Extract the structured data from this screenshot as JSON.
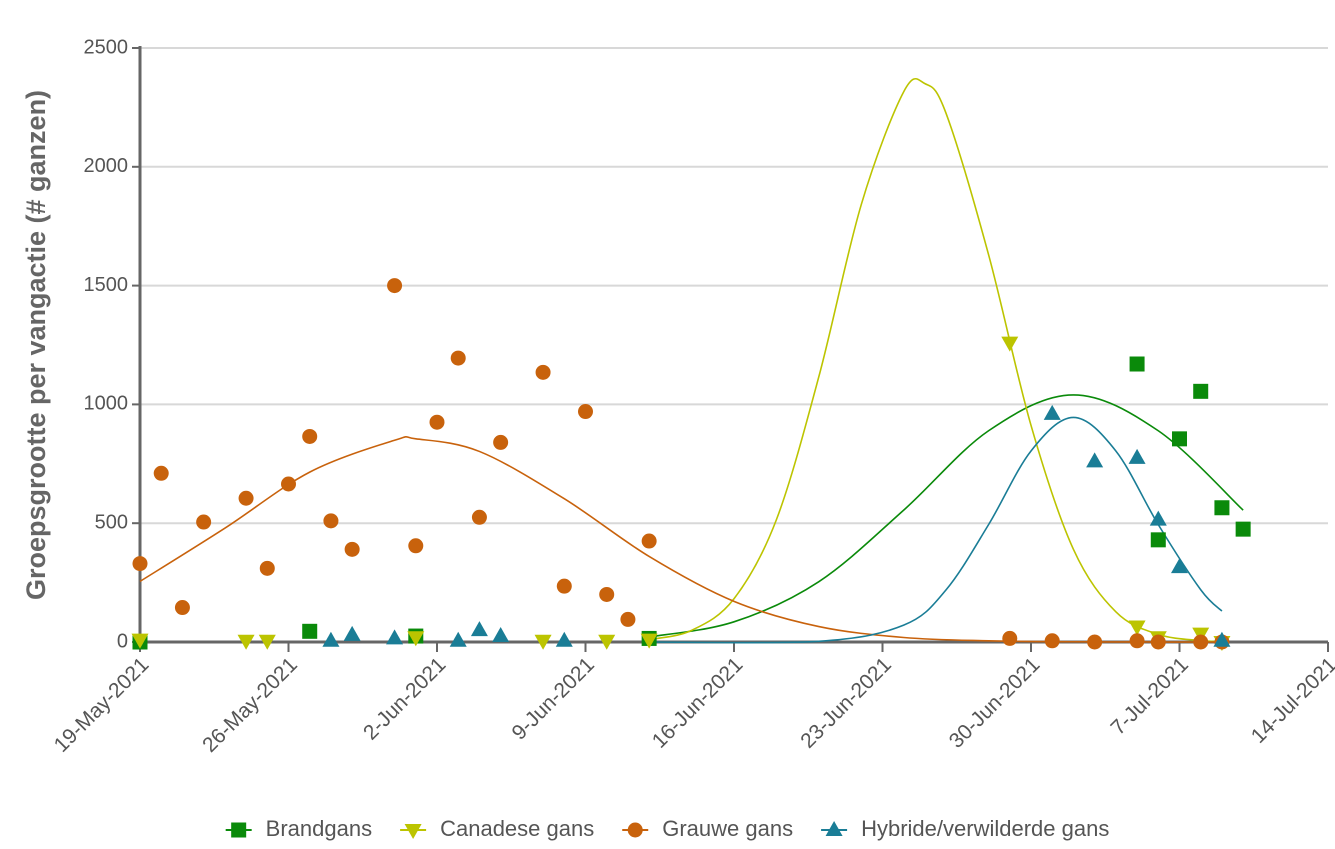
{
  "chart_data": {
    "type": "scatter",
    "y_label": "Groepsgrootte per vangactie (# ganzen)",
    "xlim": [
      "2021-05-19",
      "2021-07-14"
    ],
    "xticks": [
      {
        "value": "2021-05-19",
        "label": "19-May-2021"
      },
      {
        "value": "2021-05-26",
        "label": "26-May-2021"
      },
      {
        "value": "2021-06-02",
        "label": "2-Jun-2021"
      },
      {
        "value": "2021-06-09",
        "label": "9-Jun-2021"
      },
      {
        "value": "2021-06-16",
        "label": "16-Jun-2021"
      },
      {
        "value": "2021-06-23",
        "label": "23-Jun-2021"
      },
      {
        "value": "2021-06-30",
        "label": "30-Jun-2021"
      },
      {
        "value": "2021-07-07",
        "label": "7-Jul-2021"
      },
      {
        "value": "2021-07-14",
        "label": "14-Jul-2021"
      }
    ],
    "ylim": [
      0,
      2500
    ],
    "yticks": [
      0,
      500,
      1000,
      1500,
      2000,
      2500
    ],
    "grid": true,
    "legend": "bottom",
    "series": [
      {
        "name": "Brandgans",
        "color": "#0a8a0a",
        "marker": "square",
        "x": [
          "2021-05-19",
          "2021-05-27",
          "2021-06-01",
          "2021-06-12",
          "2021-07-05",
          "2021-07-06",
          "2021-07-07",
          "2021-07-08",
          "2021-07-09",
          "2021-07-10"
        ],
        "values": [
          0,
          45,
          25,
          15,
          1170,
          430,
          855,
          1055,
          565,
          475
        ],
        "trend": {
          "x": [
            "2021-06-12",
            "2021-06-16",
            "2021-06-20",
            "2021-06-24",
            "2021-06-28",
            "2021-07-02",
            "2021-07-06",
            "2021-07-10"
          ],
          "values": [
            21,
            85,
            254,
            555,
            889,
            1040,
            889,
            555
          ]
        }
      },
      {
        "name": "Canadese gans",
        "color": "#bcc400",
        "marker": "triangle-down",
        "x": [
          "2021-05-19",
          "2021-05-24",
          "2021-05-25",
          "2021-06-01",
          "2021-06-07",
          "2021-06-10",
          "2021-06-12",
          "2021-06-29",
          "2021-07-05",
          "2021-07-06",
          "2021-07-08",
          "2021-07-09"
        ],
        "values": [
          10,
          5,
          5,
          20,
          5,
          5,
          10,
          1260,
          65,
          20,
          35,
          0
        ],
        "trend": {
          "x": [
            "2021-06-12",
            "2021-06-14",
            "2021-06-16",
            "2021-06-18",
            "2021-06-20",
            "2021-06-22",
            "2021-06-24",
            "2021-06-25",
            "2021-06-26",
            "2021-06-28",
            "2021-06-30",
            "2021-07-02",
            "2021-07-04",
            "2021-07-06",
            "2021-07-08",
            "2021-07-09"
          ],
          "values": [
            10,
            49,
            182,
            515,
            1117,
            1841,
            2316,
            2350,
            2224,
            1630,
            912,
            390,
            127,
            32,
            6,
            2
          ]
        }
      },
      {
        "name": "Grauwe gans",
        "color": "#c8620c",
        "marker": "circle",
        "x": [
          "2021-05-19",
          "2021-05-20",
          "2021-05-21",
          "2021-05-22",
          "2021-05-24",
          "2021-05-25",
          "2021-05-26",
          "2021-05-27",
          "2021-05-28",
          "2021-05-29",
          "2021-05-31",
          "2021-06-01",
          "2021-06-02",
          "2021-06-03",
          "2021-06-04",
          "2021-06-05",
          "2021-06-07",
          "2021-06-08",
          "2021-06-09",
          "2021-06-10",
          "2021-06-11",
          "2021-06-12",
          "2021-06-29",
          "2021-07-01",
          "2021-07-03",
          "2021-07-05",
          "2021-07-06",
          "2021-07-08",
          "2021-07-09"
        ],
        "values": [
          330,
          710,
          145,
          505,
          605,
          310,
          665,
          865,
          510,
          390,
          1500,
          405,
          925,
          1195,
          525,
          840,
          1135,
          235,
          970,
          200,
          95,
          425,
          15,
          5,
          0,
          5,
          0,
          0,
          0
        ],
        "trend": {
          "x": [
            "2021-05-19",
            "2021-05-23",
            "2021-05-27",
            "2021-05-31",
            "2021-06-01",
            "2021-06-04",
            "2021-06-08",
            "2021-06-12",
            "2021-06-16",
            "2021-06-20",
            "2021-06-24",
            "2021-06-28",
            "2021-07-02",
            "2021-07-06",
            "2021-07-09"
          ],
          "values": [
            255,
            479,
            715,
            849,
            855,
            802,
            603,
            360,
            171,
            65,
            19,
            5,
            1,
            0,
            0
          ]
        }
      },
      {
        "name": "Hybride/verwilderde gans",
        "color": "#1a7d96",
        "marker": "triangle-up",
        "x": [
          "2021-05-28",
          "2021-05-29",
          "2021-05-31",
          "2021-06-03",
          "2021-06-04",
          "2021-06-05",
          "2021-06-08",
          "2021-07-01",
          "2021-07-03",
          "2021-07-05",
          "2021-07-06",
          "2021-07-07",
          "2021-07-09"
        ],
        "values": [
          5,
          30,
          15,
          5,
          50,
          25,
          5,
          960,
          760,
          775,
          515,
          315,
          5
        ],
        "trend": {
          "x": [
            "2021-06-12",
            "2021-06-20",
            "2021-06-24",
            "2021-06-26",
            "2021-06-28",
            "2021-06-30",
            "2021-07-02",
            "2021-07-04",
            "2021-07-06",
            "2021-07-08",
            "2021-07-09"
          ],
          "values": [
            0,
            3,
            71,
            220,
            494,
            804,
            945,
            804,
            494,
            220,
            130
          ]
        }
      }
    ]
  }
}
